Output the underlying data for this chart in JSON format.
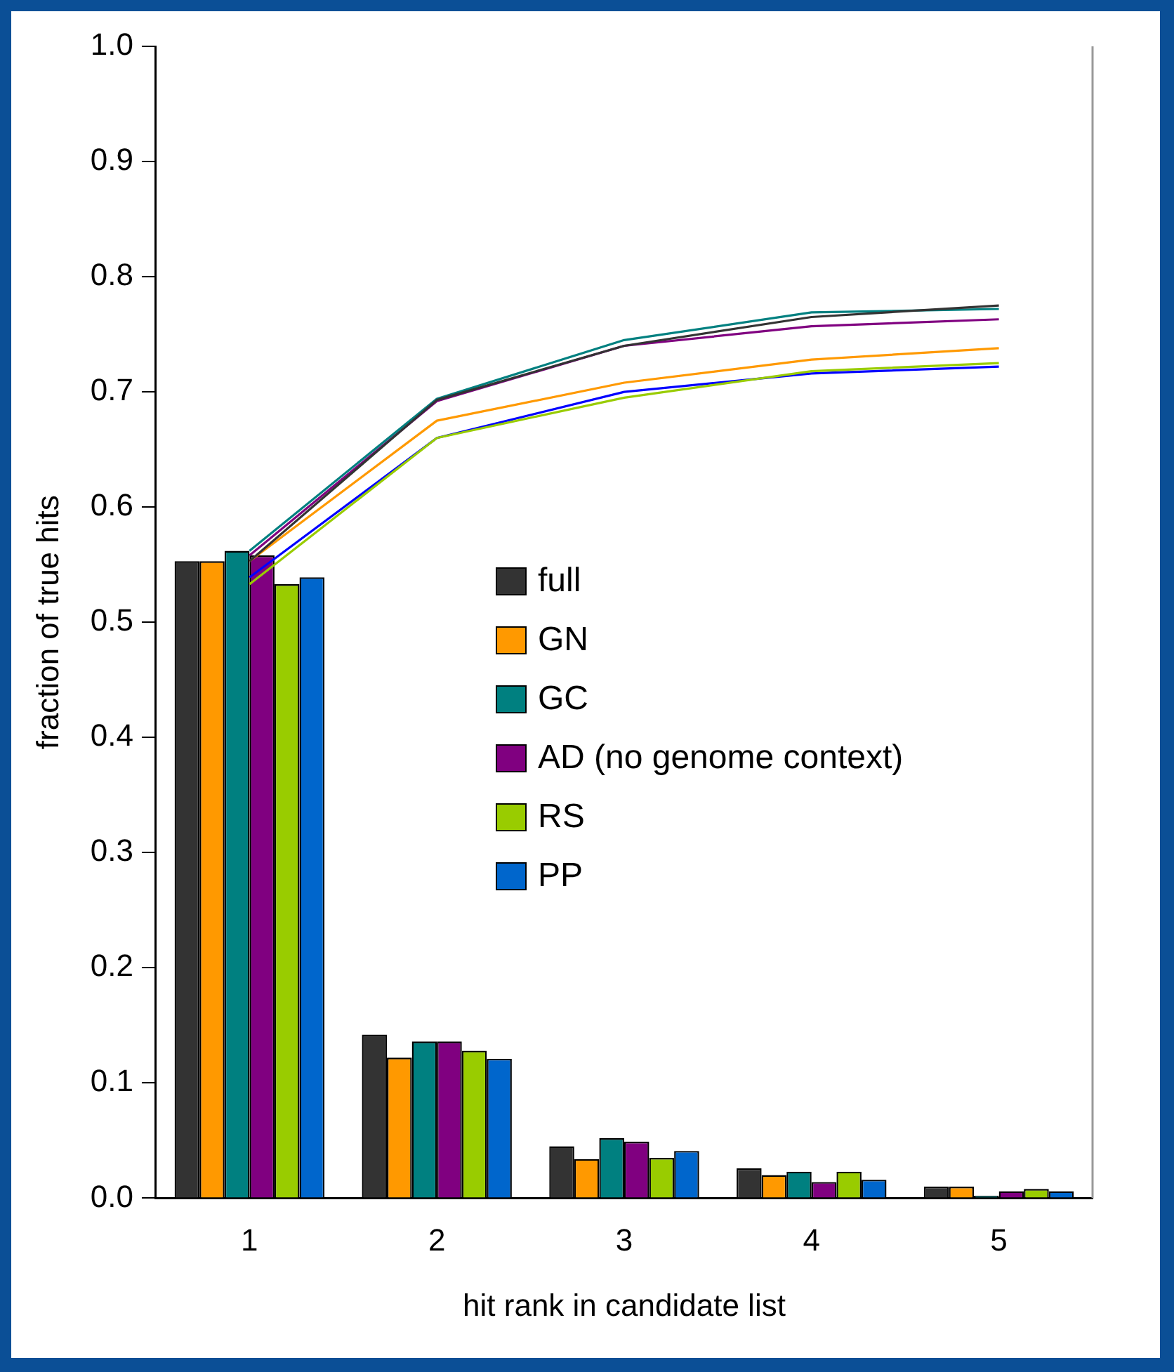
{
  "chart_data": {
    "type": "bar",
    "xlabel": "hit rank in candidate list",
    "ylabel": "fraction of true hits",
    "categories": [
      "1",
      "2",
      "3",
      "4",
      "5"
    ],
    "ylim": [
      0,
      1
    ],
    "yticks": [
      {
        "value": 0,
        "label": "0.0"
      },
      0.1,
      0.2,
      0.3,
      0.4,
      0.5,
      0.6,
      0.7,
      0.8,
      0.9,
      {
        "value": 1,
        "label": "1.0"
      }
    ],
    "grid": false,
    "legend": "center",
    "marker": "none",
    "series": [
      {
        "name": "full",
        "color": "#333333",
        "values": [
          0.553,
          0.142,
          0.045,
          0.026,
          0.01
        ]
      },
      {
        "name": "GN",
        "color": "#ff9900",
        "values": [
          0.553,
          0.122,
          0.034,
          0.02,
          0.01
        ]
      },
      {
        "name": "GC",
        "color": "#008080",
        "values": [
          0.562,
          0.136,
          0.052,
          0.023,
          0.002
        ]
      },
      {
        "name": "AD (no genome context)",
        "color": "#800080",
        "values": [
          0.558,
          0.136,
          0.049,
          0.014,
          0.006
        ]
      },
      {
        "name": "RS",
        "color": "#99cc00",
        "values": [
          0.533,
          0.128,
          0.035,
          0.023,
          0.008
        ]
      },
      {
        "name": "PP",
        "color": "#0066cc",
        "values": [
          0.539,
          0.121,
          0.041,
          0.016,
          0.006
        ]
      },
      {
        "type": "line",
        "color": "#333333",
        "values": [
          0.553,
          0.693,
          0.74,
          0.765,
          0.775
        ]
      },
      {
        "type": "line",
        "color": "#ff9900",
        "values": [
          0.553,
          0.675,
          0.708,
          0.728,
          0.738
        ]
      },
      {
        "type": "line",
        "color": "#008080",
        "values": [
          0.562,
          0.694,
          0.745,
          0.769,
          0.772
        ]
      },
      {
        "type": "line",
        "color": "#800080",
        "values": [
          0.558,
          0.692,
          0.74,
          0.757,
          0.763
        ]
      },
      {
        "type": "line",
        "color": "#99cc00",
        "values": [
          0.533,
          0.66,
          0.695,
          0.718,
          0.725
        ]
      },
      {
        "type": "line",
        "color": "#0000ff",
        "values": [
          0.539,
          0.66,
          0.7,
          0.716,
          0.722
        ]
      }
    ]
  }
}
